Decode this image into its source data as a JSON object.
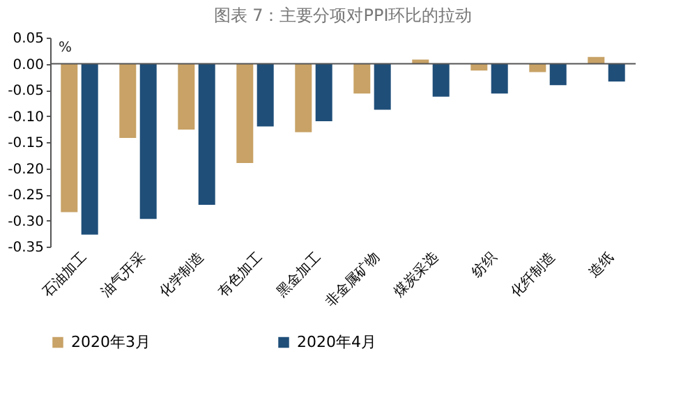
{
  "chart_data": {
    "type": "bar",
    "title": "图表 7：主要分项对PPI环比的拉动",
    "categories": [
      "石油加工",
      "油气开采",
      "化学制造",
      "有色加工",
      "黑金加工",
      "非金属矿物",
      "煤炭采选",
      "纺织",
      "化纤制造",
      "造纸"
    ],
    "series": [
      {
        "name": "2020年3月",
        "color": "#c8a266",
        "values": [
          -0.284,
          -0.142,
          -0.126,
          -0.19,
          -0.131,
          -0.057,
          0.008,
          -0.013,
          -0.016,
          0.013
        ]
      },
      {
        "name": "2020年4月",
        "color": "#1f4e79",
        "values": [
          -0.327,
          -0.297,
          -0.27,
          -0.12,
          -0.11,
          -0.088,
          -0.063,
          -0.057,
          -0.041,
          -0.034
        ]
      }
    ],
    "ylim": [
      -0.35,
      0.05
    ],
    "yticks": [
      {
        "value": 0.05,
        "label": "0.05"
      },
      {
        "value": 0,
        "label": "0.00"
      },
      {
        "value": -0.05,
        "label": "-0.05"
      },
      {
        "value": -0.1,
        "label": "-0.10"
      },
      {
        "value": -0.15,
        "label": "-0.15"
      },
      {
        "value": -0.2,
        "label": "-0.20"
      },
      {
        "value": -0.25,
        "label": "-0.25"
      },
      {
        "value": -0.3,
        "label": "-0.30"
      },
      {
        "value": -0.35,
        "label": "-0.35"
      }
    ],
    "annotations": [
      "%"
    ],
    "ref_lines": [
      {
        "axis": "y",
        "value": 0,
        "color": "#555555"
      }
    ],
    "grid": false,
    "legend": "bottom"
  }
}
